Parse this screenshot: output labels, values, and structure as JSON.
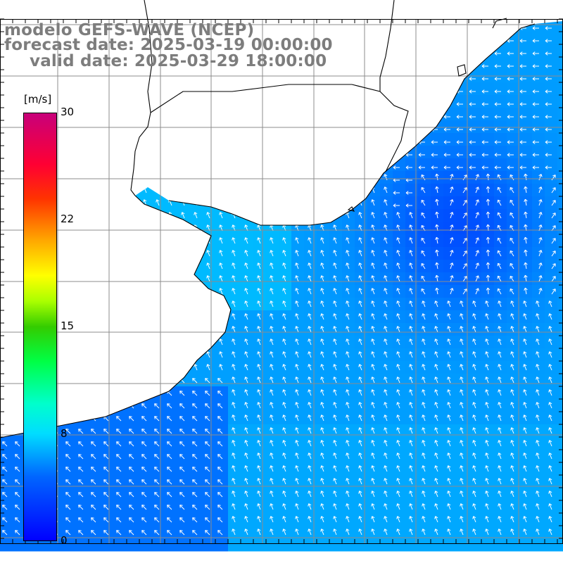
{
  "title": {
    "line1": "modelo GEFS-WAVE (NCEP)",
    "line2": "forecast date: 2025-03-19 00:00:00",
    "line3": "valid date: 2025-03-29 18:00:00"
  },
  "colorbar": {
    "unit": "[m/s]",
    "min": 0,
    "max": 30,
    "ticks": [
      "30",
      "22",
      "15",
      "8",
      "0"
    ],
    "tick_values": [
      30,
      22,
      15,
      8,
      0
    ],
    "colors": [
      "#0000ff",
      "#00aaff",
      "#00ffff",
      "#00ff66",
      "#00cc00",
      "#aaff00",
      "#ffff00",
      "#ff8800",
      "#ff0000",
      "#ff0088",
      "#cc0077"
    ]
  },
  "map": {
    "field": "wind speed and direction",
    "land_color": "#ffffff",
    "coastline_color": "#000000",
    "grid_color": "#8c8c8c",
    "region": "Rio de la Plata and adjacent South Atlantic",
    "prevailing_flow": "onshore from the southeast; weakest (darker blue) offshore to the east near the Uruguayan coast, stronger (cyan) over the estuary and southern waters"
  }
}
